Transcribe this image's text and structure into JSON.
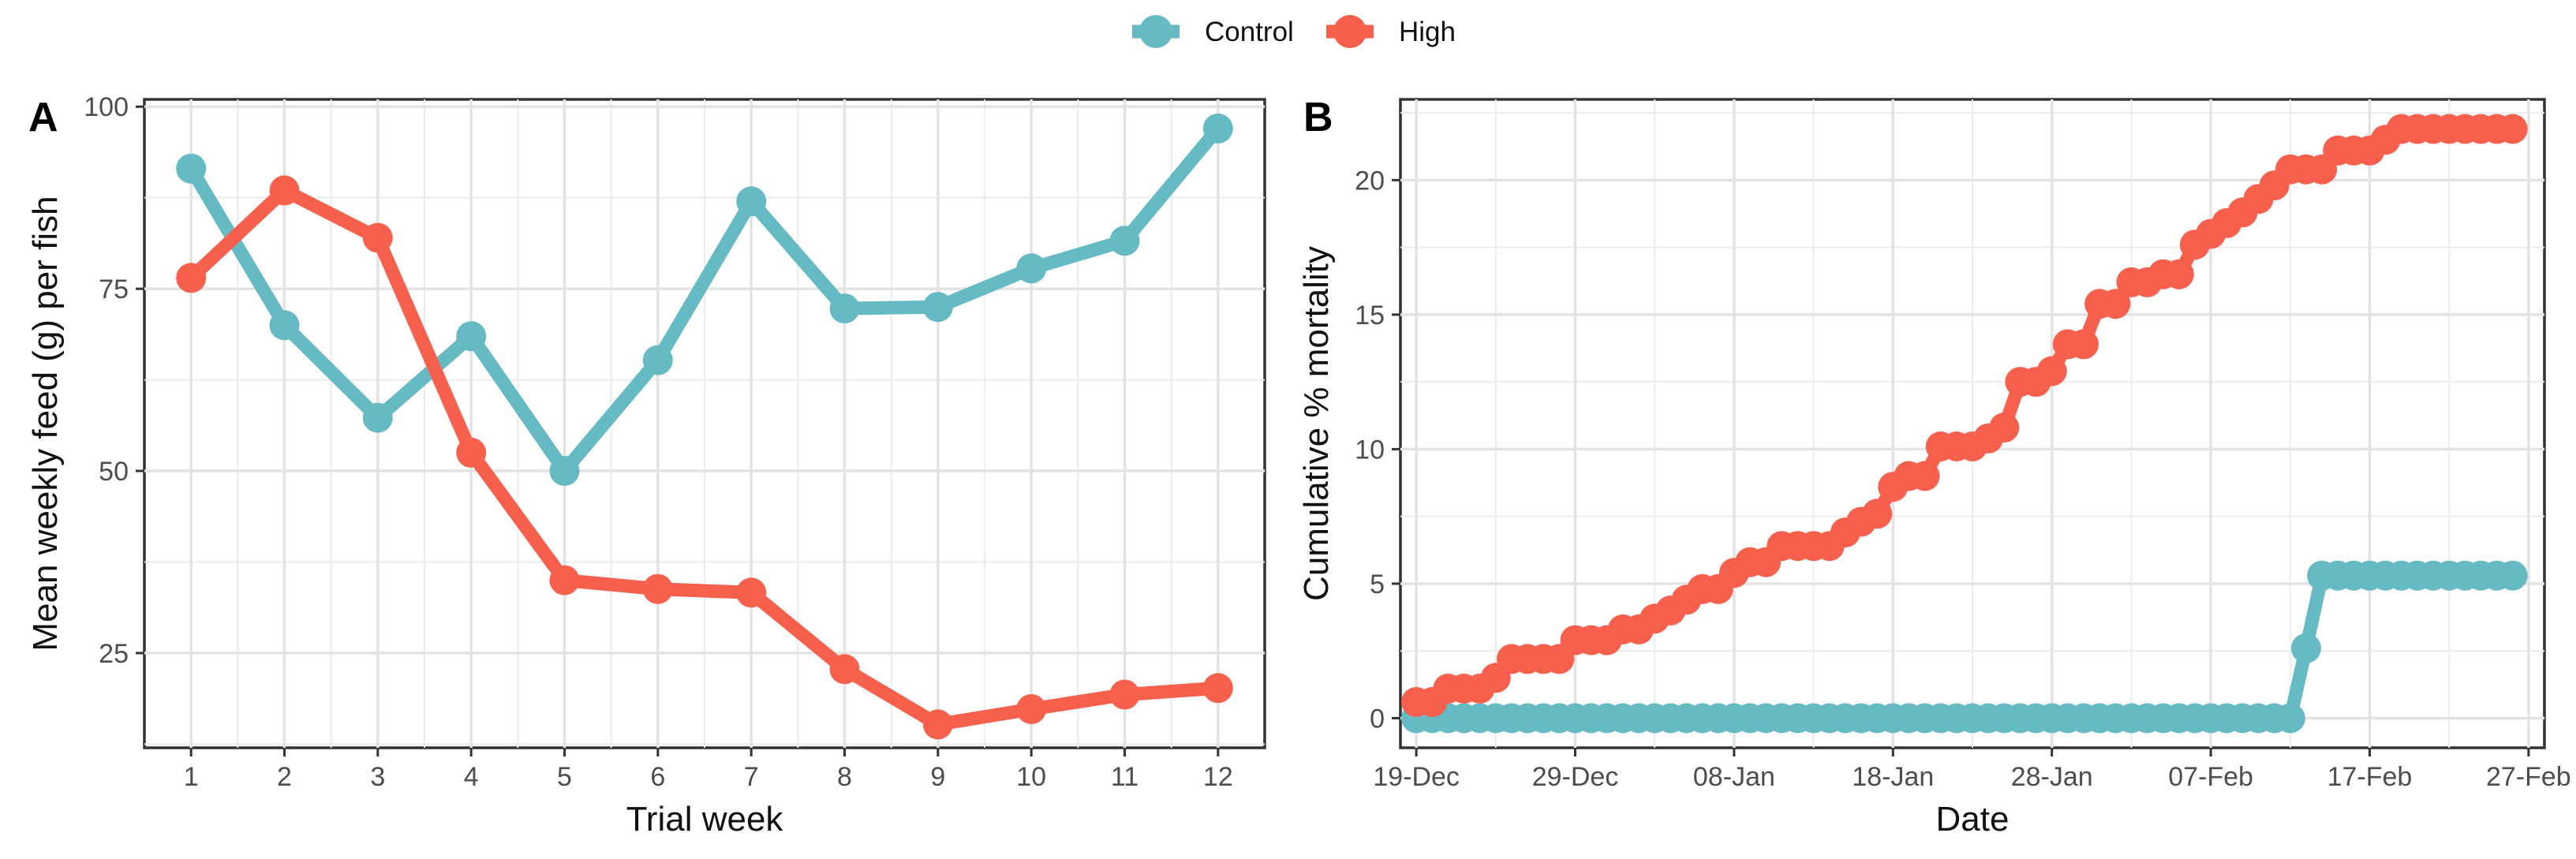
{
  "colors": {
    "control": "#66BAC4",
    "high": "#F8604E"
  },
  "legend": [
    {
      "name": "Control",
      "color": "#66BAC4"
    },
    {
      "name": "High",
      "color": "#F8604E"
    }
  ],
  "panels": [
    {
      "tag": "A"
    },
    {
      "tag": "B"
    }
  ],
  "chart_data": [
    {
      "type": "line",
      "panel": "A",
      "title": "",
      "xlabel": "Trial week",
      "ylabel": "Mean weekly feed (g) per fish",
      "x": [
        1,
        2,
        3,
        4,
        5,
        6,
        7,
        8,
        9,
        10,
        11,
        12
      ],
      "xticks": [
        1,
        2,
        3,
        4,
        5,
        6,
        7,
        8,
        9,
        10,
        11,
        12
      ],
      "xtick_labels": [
        "1",
        "2",
        "3",
        "4",
        "5",
        "6",
        "7",
        "8",
        "9",
        "10",
        "11",
        "12"
      ],
      "xlim": [
        0.5,
        12.5
      ],
      "ylim": [
        12,
        101
      ],
      "yticks": [
        25,
        50,
        75,
        100
      ],
      "ytick_labels": [
        "25",
        "50",
        "75",
        "100"
      ],
      "grid": true,
      "series": [
        {
          "name": "Control",
          "color": "#66BAC4",
          "values": [
            91.5,
            70,
            57.3,
            68.5,
            50,
            65.2,
            87,
            72.3,
            72.5,
            77.8,
            81.6,
            97
          ]
        },
        {
          "name": "High",
          "color": "#F8604E",
          "values": [
            76.5,
            88.5,
            82,
            52.5,
            35,
            33.8,
            33.3,
            22.8,
            15.2,
            17.3,
            19.3,
            20.2
          ]
        }
      ]
    },
    {
      "type": "line",
      "panel": "B",
      "title": "",
      "xlabel": "Date",
      "ylabel": "Cumulative % mortality",
      "x_unit": "days since 19-Dec",
      "xlim": [
        -1,
        71
      ],
      "xticks": [
        0,
        10,
        20,
        30,
        40,
        50,
        60,
        70
      ],
      "xtick_labels": [
        "19-Dec",
        "29-Dec",
        "08-Jan",
        "18-Jan",
        "28-Jan",
        "07-Feb",
        "17-Feb",
        "27-Feb"
      ],
      "ylim": [
        -1.1,
        23
      ],
      "yticks": [
        0,
        5,
        10,
        15,
        20
      ],
      "ytick_labels": [
        "0",
        "5",
        "10",
        "15",
        "20"
      ],
      "grid": true,
      "series": [
        {
          "name": "Control",
          "color": "#66BAC4",
          "x": [
            0,
            1,
            2,
            3,
            4,
            5,
            6,
            7,
            8,
            9,
            10,
            11,
            12,
            13,
            14,
            15,
            16,
            17,
            18,
            19,
            20,
            21,
            22,
            23,
            24,
            25,
            26,
            27,
            28,
            29,
            30,
            31,
            32,
            33,
            34,
            35,
            36,
            37,
            38,
            39,
            40,
            41,
            42,
            43,
            44,
            45,
            46,
            47,
            48,
            49,
            50,
            51,
            52,
            53,
            54,
            55,
            56,
            57,
            58,
            59,
            60,
            61,
            62,
            63,
            64,
            65,
            66,
            67,
            68,
            69
          ],
          "values": [
            0,
            0,
            0,
            0,
            0,
            0,
            0,
            0,
            0,
            0,
            0,
            0,
            0,
            0,
            0,
            0,
            0,
            0,
            0,
            0,
            0,
            0,
            0,
            0,
            0,
            0,
            0,
            0,
            0,
            0,
            0,
            0,
            0,
            0,
            0,
            0,
            0,
            0,
            0,
            0,
            0,
            0,
            0,
            0,
            0,
            0,
            0,
            0,
            0,
            0,
            0,
            0,
            0,
            0,
            0,
            0,
            2.6,
            5.3,
            5.3,
            5.3,
            5.3,
            5.3,
            5.3,
            5.3,
            5.3,
            5.3,
            5.3,
            5.3,
            5.3,
            5.3
          ]
        },
        {
          "name": "High",
          "color": "#F8604E",
          "x": [
            0,
            1,
            2,
            3,
            4,
            5,
            6,
            7,
            8,
            9,
            10,
            11,
            12,
            13,
            14,
            15,
            16,
            17,
            18,
            19,
            20,
            21,
            22,
            23,
            24,
            25,
            26,
            27,
            28,
            29,
            30,
            31,
            32,
            33,
            34,
            35,
            36,
            37,
            38,
            39,
            40,
            41,
            42,
            43,
            44,
            45,
            46,
            47,
            48,
            49,
            50,
            51,
            52,
            53,
            54,
            55,
            56,
            57,
            58,
            59,
            60,
            61,
            62,
            63,
            64,
            65,
            66,
            67,
            68,
            69
          ],
          "values": [
            0.6,
            0.6,
            1.1,
            1.1,
            1.1,
            1.5,
            2.2,
            2.2,
            2.2,
            2.2,
            2.9,
            2.9,
            2.9,
            3.3,
            3.3,
            3.7,
            4.0,
            4.4,
            4.8,
            4.8,
            5.4,
            5.8,
            5.8,
            6.4,
            6.4,
            6.4,
            6.4,
            6.9,
            7.3,
            7.6,
            8.6,
            9.0,
            9.0,
            10.1,
            10.1,
            10.1,
            10.4,
            10.8,
            12.5,
            12.5,
            12.9,
            13.9,
            13.9,
            15.4,
            15.4,
            16.2,
            16.2,
            16.5,
            16.5,
            17.6,
            18.0,
            18.4,
            18.8,
            19.3,
            19.8,
            20.4,
            20.4,
            20.4,
            21.1,
            21.1,
            21.1,
            21.5,
            21.9,
            21.9,
            21.9,
            21.9,
            21.9,
            21.9,
            21.9,
            21.9
          ]
        }
      ]
    }
  ]
}
